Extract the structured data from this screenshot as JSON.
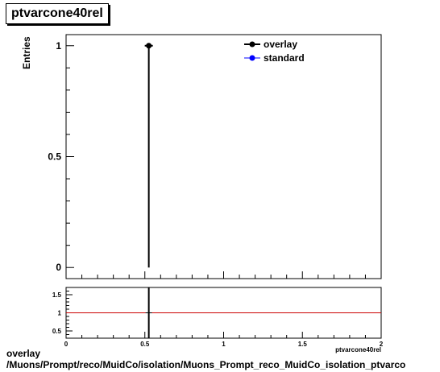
{
  "title": "ptvarcone40rel",
  "caption": {
    "line1": "overlay",
    "line2": "/Muons/Prompt/reco/MuidCo/isolation/Muons_Prompt_reco_MuidCo_isolation_ptvarco"
  },
  "chart_data": [
    {
      "type": "scatter",
      "panel": "main",
      "ylabel": "Entries",
      "xlabel": "",
      "xlim": [
        0,
        2
      ],
      "ylim": [
        -0.05,
        1.05
      ],
      "y_ticks": [
        {
          "value": 0,
          "label": "0"
        },
        {
          "value": 0.5,
          "label": "0.5"
        },
        {
          "value": 1,
          "label": "1"
        }
      ],
      "legend": "top-right",
      "series": [
        {
          "name": "overlay",
          "color": "#000000",
          "marker": "filled-circle",
          "points": [
            {
              "x": 0.525,
              "y": 1,
              "y_err_low": 1,
              "y_err_high": 0
            }
          ]
        },
        {
          "name": "standard",
          "color": "#0000ff",
          "marker": "filled-circle",
          "points": [
            {
              "x": 0.525,
              "y": 1
            }
          ]
        }
      ]
    },
    {
      "type": "line",
      "panel": "ratio",
      "xlabel": "ptvarcone40rel",
      "xlim": [
        0,
        2
      ],
      "ylim": [
        0.3,
        1.7
      ],
      "x_ticks": [
        {
          "value": 0,
          "label": "0"
        },
        {
          "value": 0.5,
          "label": "0.5"
        },
        {
          "value": 1,
          "label": "1"
        },
        {
          "value": 1.5,
          "label": "1.5"
        },
        {
          "value": 2,
          "label": "2"
        }
      ],
      "y_ticks": [
        {
          "value": 0.5,
          "label": "0.5"
        },
        {
          "value": 1,
          "label": "1"
        },
        {
          "value": 1.5,
          "label": "1.5"
        }
      ],
      "reference_line": {
        "y": 1,
        "color": "#cc0000"
      },
      "points": [
        {
          "x": 0.525,
          "y": 1,
          "y_err_low": 0.7,
          "y_err_high": 0.7
        }
      ]
    }
  ]
}
